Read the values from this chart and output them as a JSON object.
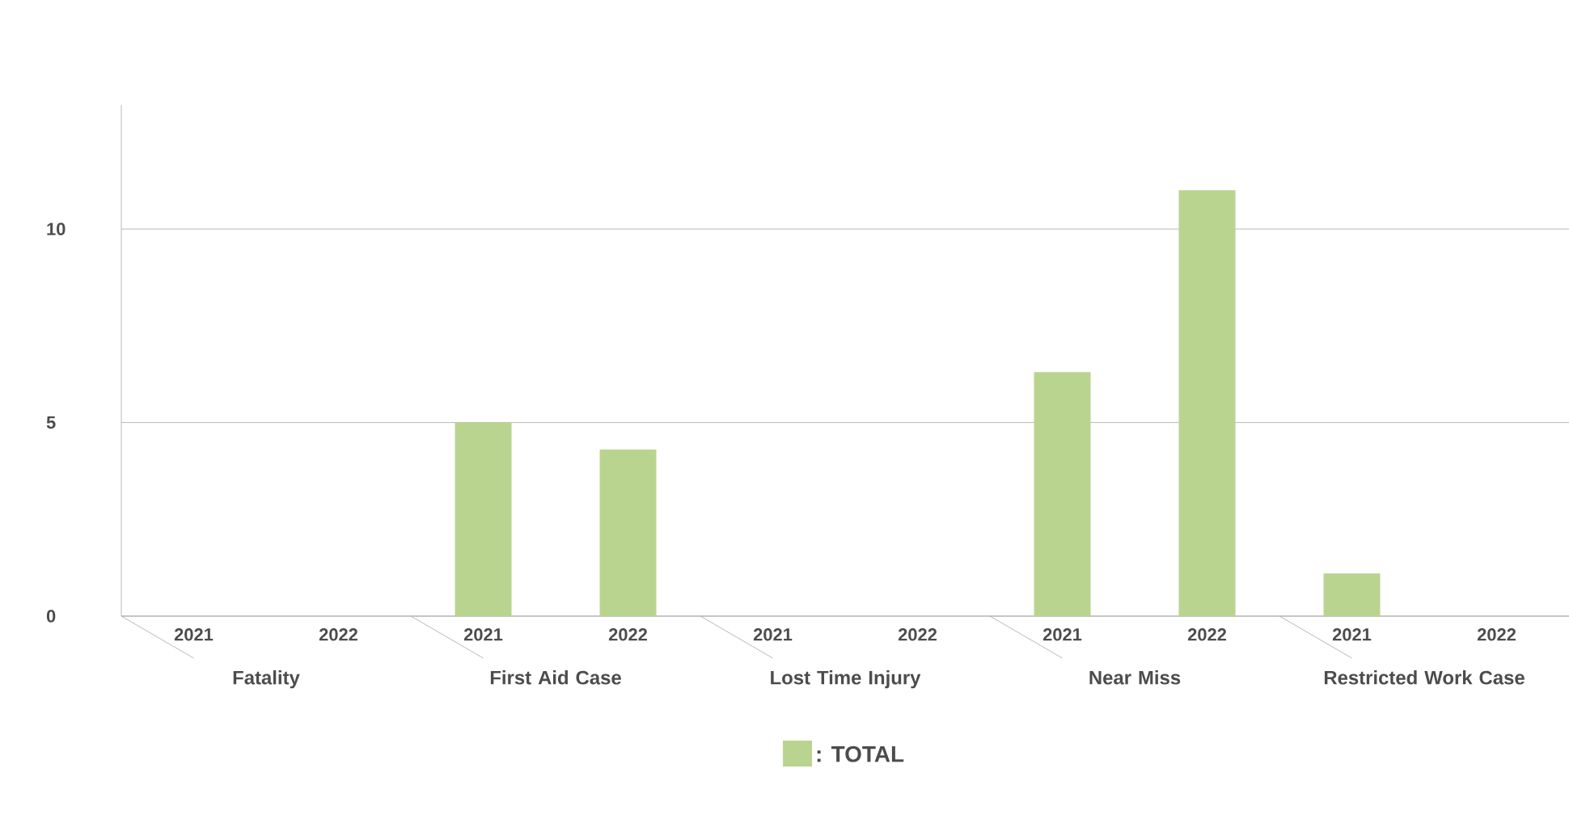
{
  "chart_data": {
    "type": "bar",
    "categories": [
      "2021",
      "2022",
      "2021",
      "2022",
      "2021",
      "2022",
      "2021",
      "2022",
      "2021",
      "2022"
    ],
    "series": [
      {
        "name": ": TOTAL",
        "color": "#b9d48f",
        "values": [
          0,
          0,
          5,
          4.3,
          0,
          0,
          6.3,
          11,
          1.1,
          0
        ]
      }
    ],
    "annotations": [
      "Fatality",
      "First Aid Case",
      "Lost Time Injury",
      "Near Miss",
      "Restricted Work Case"
    ],
    "ylim": [
      0,
      13.2
    ],
    "yticks": [
      0,
      5,
      10
    ],
    "grid": "y",
    "legend": "bottom"
  }
}
